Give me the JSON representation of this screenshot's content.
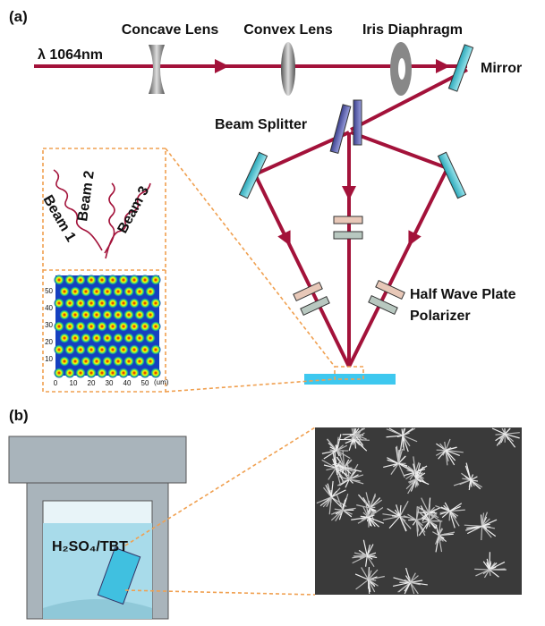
{
  "panel_a": {
    "label": "(a)",
    "wavelength": "λ 1064nm",
    "components": {
      "concave_lens": "Concave Lens",
      "convex_lens": "Convex Lens",
      "iris": "Iris Diaphragm",
      "mirror": "Mirror",
      "beam_splitter": "Beam Splitter",
      "half_wave_plate": "Half Wave Plate",
      "polarizer": "Polarizer"
    },
    "beams": [
      "Beam 1",
      "Beam 2",
      "Beam 3"
    ],
    "inset": {
      "xticks": [
        "0",
        "10",
        "20",
        "30",
        "40",
        "50"
      ],
      "yticks": [
        "10",
        "20",
        "30",
        "40",
        "50"
      ],
      "unit": "(um)"
    }
  },
  "panel_b": {
    "label": "(b)",
    "solution": "H₂SO₄/TBT"
  }
}
